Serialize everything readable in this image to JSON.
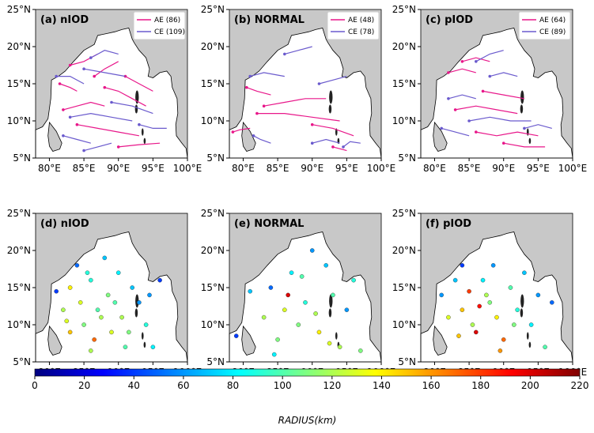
{
  "chart_data": [
    {
      "type": "line",
      "title": "(a) nIOD",
      "xlim": [
        78,
        100
      ],
      "ylim": [
        5,
        25
      ],
      "xticks": [
        {
          "value": 80,
          "label": "80°E"
        },
        {
          "value": 85,
          "label": "85°E"
        },
        {
          "value": 90,
          "label": "90°E"
        },
        {
          "value": 95,
          "label": "95°E"
        },
        {
          "value": 100,
          "label": "100°E"
        }
      ],
      "yticks": [
        {
          "value": 5,
          "label": "5°N"
        },
        {
          "value": 10,
          "label": "10°N"
        },
        {
          "value": 15,
          "label": "15°N"
        },
        {
          "value": 20,
          "label": "20°N"
        },
        {
          "value": 25,
          "label": "25°N"
        }
      ],
      "legend": "upper right",
      "series": [
        {
          "name": "AE (86)",
          "color": "#e8178a",
          "tracks": [
            {
              "lon": [
                84,
                83,
                81.5
              ],
              "lat": [
                14,
                14.5,
                15
              ]
            },
            {
              "lon": [
                88,
                86,
                84,
                82
              ],
              "lat": [
                12,
                12.5,
                12,
                11.5
              ]
            },
            {
              "lon": [
                93,
                90,
                87,
                84
              ],
              "lat": [
                8,
                8.5,
                9,
                9.5
              ]
            },
            {
              "lon": [
                96,
                93,
                90
              ],
              "lat": [
                7,
                6.8,
                6.5
              ]
            },
            {
              "lon": [
                90,
                88,
                86.5
              ],
              "lat": [
                18,
                17,
                16
              ]
            },
            {
              "lon": [
                94,
                92,
                90,
                88
              ],
              "lat": [
                12,
                13,
                14,
                14.5
              ]
            },
            {
              "lon": [
                87,
                85,
                83
              ],
              "lat": [
                19,
                18,
                17.5
              ]
            },
            {
              "lon": [
                95,
                93,
                91
              ],
              "lat": [
                14,
                15,
                16
              ]
            }
          ]
        },
        {
          "name": "CE (109)",
          "color": "#6a5acd",
          "tracks": [
            {
              "lon": [
                90,
                88,
                86
              ],
              "lat": [
                19,
                19.5,
                18.5
              ]
            },
            {
              "lon": [
                92,
                89,
                86,
                83
              ],
              "lat": [
                10,
                10.5,
                11,
                10.5
              ]
            },
            {
              "lon": [
                95,
                92,
                89
              ],
              "lat": [
                11,
                12,
                12.5
              ]
            },
            {
              "lon": [
                86,
                84,
                82
              ],
              "lat": [
                7,
                7.5,
                8
              ]
            },
            {
              "lon": [
                97,
                95,
                93
              ],
              "lat": [
                9,
                9,
                9.5
              ]
            },
            {
              "lon": [
                85,
                83,
                81
              ],
              "lat": [
                15,
                16,
                16
              ]
            },
            {
              "lon": [
                91,
                88,
                85
              ],
              "lat": [
                16,
                16.5,
                17
              ]
            },
            {
              "lon": [
                89,
                87,
                85
              ],
              "lat": [
                7,
                6.5,
                6
              ]
            }
          ]
        }
      ]
    },
    {
      "type": "line",
      "title": "(b) NORMAL",
      "xlim": [
        78,
        100
      ],
      "ylim": [
        5,
        25
      ],
      "xticks": [
        {
          "value": 80,
          "label": "80°E"
        },
        {
          "value": 85,
          "label": "85°E"
        },
        {
          "value": 90,
          "label": "90°E"
        },
        {
          "value": 95,
          "label": "95°E"
        },
        {
          "value": 100,
          "label": "100°E"
        }
      ],
      "yticks": [
        {
          "value": 5,
          "label": "5°N"
        },
        {
          "value": 10,
          "label": "10°N"
        },
        {
          "value": 15,
          "label": "15°N"
        },
        {
          "value": 20,
          "label": "20°N"
        },
        {
          "value": 25,
          "label": "25°N"
        }
      ],
      "legend": "upper right",
      "series": [
        {
          "name": "AE (48)",
          "color": "#e8178a",
          "tracks": [
            {
              "lon": [
                92,
                89,
                86,
                83
              ],
              "lat": [
                13,
                13,
                12.5,
                12
              ]
            },
            {
              "lon": [
                94,
                90,
                86,
                82
              ],
              "lat": [
                10,
                10.5,
                11,
                11
              ]
            },
            {
              "lon": [
                96,
                93,
                90
              ],
              "lat": [
                8,
                9,
                9.5
              ]
            },
            {
              "lon": [
                84,
                82,
                80.5
              ],
              "lat": [
                13.5,
                14,
                14.5
              ]
            },
            {
              "lon": [
                95,
                93
              ],
              "lat": [
                6,
                6.5
              ]
            },
            {
              "lon": [
                81,
                79.5,
                78.5
              ],
              "lat": [
                9,
                8.8,
                8.5
              ]
            }
          ]
        },
        {
          "name": "CE (78)",
          "color": "#6a5acd",
          "tracks": [
            {
              "lon": [
                86,
                83,
                81
              ],
              "lat": [
                16,
                16.5,
                16
              ]
            },
            {
              "lon": [
                90,
                88,
                86
              ],
              "lat": [
                20,
                19.5,
                19
              ]
            },
            {
              "lon": [
                95,
                93,
                91
              ],
              "lat": [
                16,
                15.5,
                15
              ]
            },
            {
              "lon": [
                94,
                92,
                90
              ],
              "lat": [
                7,
                7.5,
                7
              ]
            },
            {
              "lon": [
                84,
                82.5,
                81.5
              ],
              "lat": [
                7,
                7.5,
                8
              ]
            },
            {
              "lon": [
                97,
                95.5,
                94.5
              ],
              "lat": [
                7,
                7.2,
                6.5
              ]
            }
          ]
        }
      ]
    },
    {
      "type": "line",
      "title": "(c) pIOD",
      "xlim": [
        78,
        100
      ],
      "ylim": [
        5,
        25
      ],
      "xticks": [
        {
          "value": 80,
          "label": "80°E"
        },
        {
          "value": 85,
          "label": "85°E"
        },
        {
          "value": 90,
          "label": "90°E"
        },
        {
          "value": 95,
          "label": "95°E"
        },
        {
          "value": 100,
          "label": "100°E"
        }
      ],
      "yticks": [
        {
          "value": 5,
          "label": "5°N"
        },
        {
          "value": 10,
          "label": "10°N"
        },
        {
          "value": 15,
          "label": "15°N"
        },
        {
          "value": 20,
          "label": "20°N"
        },
        {
          "value": 25,
          "label": "25°N"
        }
      ],
      "legend": "upper right",
      "series": [
        {
          "name": "AE (64)",
          "color": "#e8178a",
          "tracks": [
            {
              "lon": [
                86,
                84,
                82
              ],
              "lat": [
                16.5,
                17,
                16.5
              ]
            },
            {
              "lon": [
                92,
                89,
                86,
                83
              ],
              "lat": [
                11,
                11.5,
                12,
                11.5
              ]
            },
            {
              "lon": [
                95,
                92,
                89,
                86
              ],
              "lat": [
                8,
                8.5,
                8,
                8.5
              ]
            },
            {
              "lon": [
                93,
                90,
                87
              ],
              "lat": [
                13,
                13.5,
                14
              ]
            },
            {
              "lon": [
                96,
                93,
                90
              ],
              "lat": [
                6.5,
                6.5,
                7
              ]
            },
            {
              "lon": [
                88,
                86,
                84
              ],
              "lat": [
                18,
                18.5,
                18
              ]
            }
          ]
        },
        {
          "name": "CE (89)",
          "color": "#6a5acd",
          "tracks": [
            {
              "lon": [
                90,
                88,
                86
              ],
              "lat": [
                19.5,
                19,
                18
              ]
            },
            {
              "lon": [
                94,
                91,
                88,
                85
              ],
              "lat": [
                10,
                10,
                10.5,
                10
              ]
            },
            {
              "lon": [
                86,
                84,
                82
              ],
              "lat": [
                13,
                13.5,
                13
              ]
            },
            {
              "lon": [
                92,
                90,
                88
              ],
              "lat": [
                16,
                16.5,
                16
              ]
            },
            {
              "lon": [
                85,
                83,
                81
              ],
              "lat": [
                8,
                8.5,
                9
              ]
            },
            {
              "lon": [
                97,
                95,
                93
              ],
              "lat": [
                9,
                9.5,
                9
              ]
            }
          ]
        }
      ]
    },
    {
      "type": "scatter",
      "title": "(d) nIOD",
      "xlim": [
        78,
        100
      ],
      "ylim": [
        5,
        25
      ],
      "xticks": [
        {
          "value": 80,
          "label": "80°E"
        },
        {
          "value": 85,
          "label": "85°E"
        },
        {
          "value": 90,
          "label": "90°E"
        },
        {
          "value": 95,
          "label": "95°E"
        },
        {
          "value": 100,
          "label": "100°E"
        }
      ],
      "yticks": [
        {
          "value": 5,
          "label": "5°N"
        },
        {
          "value": 10,
          "label": "10°N"
        },
        {
          "value": 15,
          "label": "15°N"
        },
        {
          "value": 20,
          "label": "20°N"
        },
        {
          "value": 25,
          "label": "25°N"
        }
      ],
      "x": [
        81,
        82,
        83,
        84,
        84.5,
        85,
        86,
        86.5,
        87,
        88,
        88.5,
        89,
        90,
        90.5,
        91,
        92,
        93,
        94,
        95,
        96,
        83,
        85.5,
        87.5,
        89.5,
        91.5,
        94.5,
        82.5,
        86
      ],
      "y": [
        14.5,
        12,
        15,
        18,
        13,
        10,
        16,
        8,
        12,
        19,
        14,
        9,
        17,
        11,
        7,
        15,
        13,
        10,
        7,
        16,
        9,
        17,
        11,
        13,
        9,
        14,
        10.5,
        6.5
      ],
      "values": [
        40,
        120,
        140,
        50,
        130,
        110,
        90,
        170,
        100,
        70,
        110,
        130,
        80,
        120,
        100,
        70,
        60,
        90,
        80,
        40,
        150,
        90,
        120,
        100,
        110,
        60,
        130,
        120
      ]
    },
    {
      "type": "scatter",
      "title": "(e) NORMAL",
      "xlim": [
        78,
        100
      ],
      "ylim": [
        5,
        25
      ],
      "xticks": [
        {
          "value": 80,
          "label": "80°E"
        },
        {
          "value": 85,
          "label": "85°E"
        },
        {
          "value": 90,
          "label": "90°E"
        },
        {
          "value": 95,
          "label": "95°E"
        },
        {
          "value": 100,
          "label": "100°E"
        }
      ],
      "yticks": [
        {
          "value": 5,
          "label": "5°N"
        },
        {
          "value": 10,
          "label": "10°N"
        },
        {
          "value": 15,
          "label": "15°N"
        },
        {
          "value": 20,
          "label": "20°N"
        },
        {
          "value": 25,
          "label": "25°N"
        }
      ],
      "x": [
        79,
        81,
        83,
        84,
        85,
        86,
        87,
        88,
        89,
        90,
        91,
        92,
        93,
        94,
        95,
        96,
        97,
        84.5,
        86.5,
        88.5,
        90.5,
        92.5
      ],
      "y": [
        8.5,
        14.5,
        11,
        15,
        8,
        12,
        17,
        10,
        13,
        20,
        9,
        18,
        14,
        7,
        12,
        16,
        6.5,
        6,
        14,
        16.5,
        11.5,
        7.5
      ],
      "values": [
        40,
        70,
        120,
        50,
        110,
        130,
        80,
        110,
        90,
        60,
        140,
        70,
        100,
        120,
        60,
        90,
        110,
        80,
        200,
        100,
        120,
        130
      ]
    },
    {
      "type": "scatter",
      "title": "(f) pIOD",
      "xlim": [
        78,
        100
      ],
      "ylim": [
        5,
        25
      ],
      "xticks": [
        {
          "value": 80,
          "label": "80°E"
        },
        {
          "value": 85,
          "label": "85°E"
        },
        {
          "value": 90,
          "label": "90°E"
        },
        {
          "value": 95,
          "label": "95°E"
        },
        {
          "value": 100,
          "label": "100°E"
        }
      ],
      "yticks": [
        {
          "value": 5,
          "label": "5°N"
        },
        {
          "value": 10,
          "label": "10°N"
        },
        {
          "value": 15,
          "label": "15°N"
        },
        {
          "value": 20,
          "label": "20°N"
        },
        {
          "value": 25,
          "label": "25°N"
        }
      ],
      "x": [
        81,
        82,
        83,
        84,
        85,
        85.5,
        86,
        87,
        88,
        88.5,
        89,
        90,
        91,
        92,
        93,
        94,
        95,
        96,
        97,
        84,
        86.5,
        89.5,
        91.5,
        83.5,
        87.5
      ],
      "y": [
        14,
        11,
        16,
        12,
        14.5,
        10,
        9,
        16,
        13,
        18,
        11,
        8,
        15,
        12,
        17,
        10,
        14,
        7,
        13,
        18,
        12.5,
        6.5,
        10,
        8.5,
        14
      ],
      "values": [
        60,
        130,
        70,
        150,
        180,
        120,
        200,
        80,
        110,
        60,
        140,
        170,
        100,
        90,
        70,
        80,
        60,
        100,
        50,
        40,
        190,
        160,
        110,
        150,
        120
      ]
    }
  ],
  "colorbar": {
    "label": "RADIUS(km)",
    "lim": [
      0,
      220
    ],
    "ticks": [
      0,
      20,
      40,
      60,
      80,
      100,
      120,
      140,
      160,
      180,
      200,
      220
    ]
  }
}
